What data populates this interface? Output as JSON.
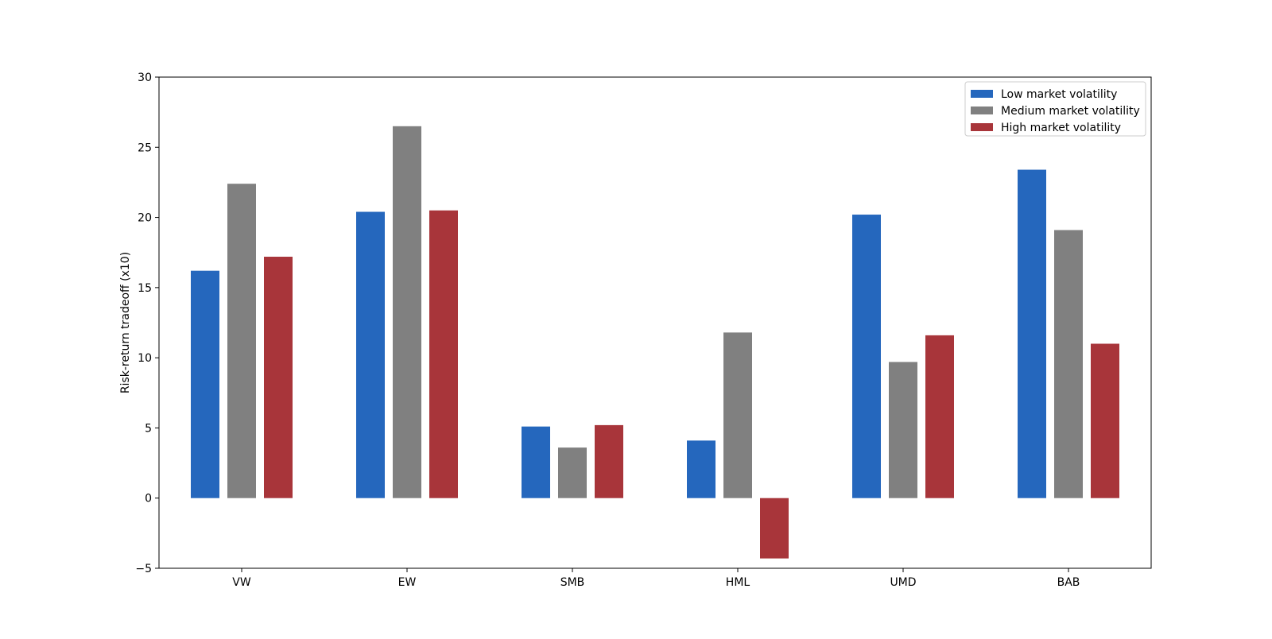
{
  "chart_data": {
    "type": "bar",
    "title": "",
    "xlabel": "",
    "ylabel": "Risk-return tradeoff (x10)",
    "categories": [
      "VW",
      "EW",
      "SMB",
      "HML",
      "UMD",
      "BAB"
    ],
    "series": [
      {
        "name": "Low market volatility",
        "color": "#2567bd",
        "values": [
          16.2,
          20.4,
          5.1,
          4.1,
          20.2,
          23.4
        ]
      },
      {
        "name": "Medium market volatility",
        "color": "#808080",
        "values": [
          22.4,
          26.5,
          3.6,
          11.8,
          9.7,
          19.1
        ]
      },
      {
        "name": "High market volatility",
        "color": "#a8353a",
        "values": [
          17.2,
          20.5,
          5.2,
          -4.3,
          11.6,
          11.0
        ]
      }
    ],
    "ylim": [
      -5,
      30
    ],
    "yticks": [
      -5,
      0,
      5,
      10,
      15,
      20,
      25,
      30
    ],
    "grid": false,
    "legend_position": "top-right"
  }
}
